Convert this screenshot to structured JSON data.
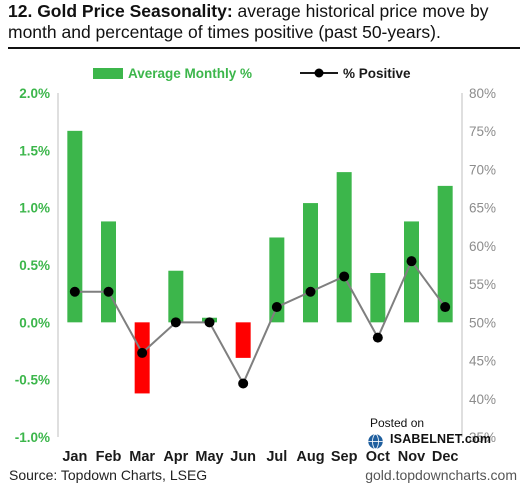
{
  "header": {
    "title_bold": "12. Gold Price Seasonality:",
    "title_rest": " average historical price move by month and percentage of times positive (past 50-years)."
  },
  "footer": {
    "source": "Source: Topdown Charts, LSEG",
    "site": "gold.topdowncharts.com",
    "posted_on": "Posted on",
    "posted_site": "ISABELNET.com"
  },
  "colors": {
    "positive_bar": "#3cb64b",
    "negative_bar": "#ff0000",
    "line": "#7f7f7f",
    "marker": "#000000",
    "left_axis_text": "#3cb64b",
    "right_axis_text": "#8c8c8c"
  },
  "chart_data": {
    "type": "bar+line",
    "categories": [
      "Jan",
      "Feb",
      "Mar",
      "Apr",
      "May",
      "Jun",
      "Jul",
      "Aug",
      "Sep",
      "Oct",
      "Nov",
      "Dec"
    ],
    "series": [
      {
        "name": "Average Monthly %",
        "type": "bar",
        "axis": "left",
        "values": [
          1.67,
          0.88,
          -0.62,
          0.45,
          0.04,
          -0.31,
          0.74,
          1.04,
          1.31,
          0.43,
          0.88,
          1.19
        ]
      },
      {
        "name": "% Positive",
        "type": "line",
        "axis": "right",
        "values": [
          54,
          54,
          46,
          50,
          50,
          42,
          52,
          54,
          56,
          48,
          58,
          52
        ]
      }
    ],
    "left_axis": {
      "ticks": [
        "2.0%",
        "1.5%",
        "1.0%",
        "0.5%",
        "0.0%",
        "-0.5%",
        "-1.0%"
      ],
      "ylim": [
        -1.0,
        2.0
      ]
    },
    "right_axis": {
      "ticks": [
        "80%",
        "75%",
        "70%",
        "65%",
        "60%",
        "55%",
        "50%",
        "45%",
        "40%",
        "35%"
      ],
      "ylim": [
        35,
        80
      ]
    },
    "legend_position": "top",
    "grid": false
  }
}
